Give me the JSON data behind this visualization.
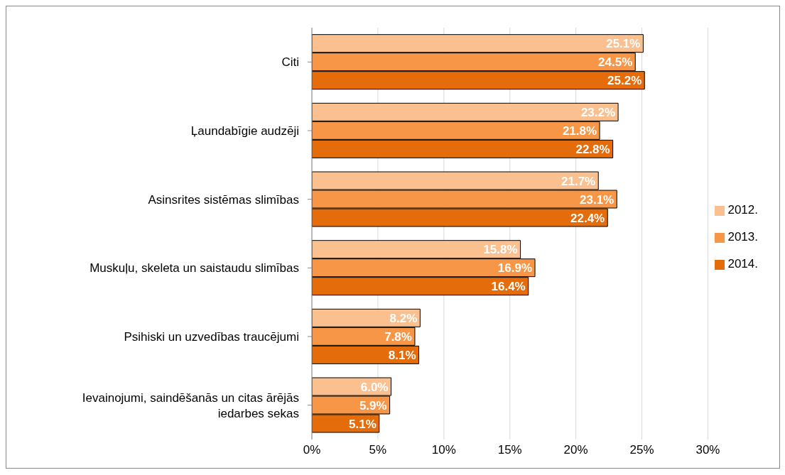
{
  "chart_data": {
    "type": "bar",
    "orientation": "horizontal",
    "categories": [
      "Citi",
      "Ļaundabīgie audzēji",
      "Asinsrites sistēmas slimības",
      "Muskuļu, skeleta un saistaudu slimības",
      "Psihiski un uzvedības traucējumi",
      "Ievainojumi, saindēšanās un citas ārējās iedarbes sekas"
    ],
    "series": [
      {
        "name": "2012.",
        "color": "#fac090",
        "values": [
          25.1,
          23.2,
          21.7,
          15.8,
          8.2,
          6.0
        ],
        "value_labels": [
          "25.1%",
          "23.2%",
          "21.7%",
          "15.8%",
          "8.2%",
          "6.0%"
        ]
      },
      {
        "name": "2013.",
        "color": "#f79646",
        "values": [
          24.5,
          21.8,
          23.1,
          16.9,
          7.8,
          5.9
        ],
        "value_labels": [
          "24.5%",
          "21.8%",
          "23.1%",
          "16.9%",
          "7.8%",
          "5.9%"
        ]
      },
      {
        "name": "2014.",
        "color": "#e46c0a",
        "values": [
          25.2,
          22.8,
          22.4,
          16.4,
          8.1,
          5.1
        ],
        "value_labels": [
          "25.2%",
          "22.8%",
          "22.4%",
          "16.4%",
          "8.1%",
          "5.1%"
        ]
      }
    ],
    "xlim": [
      0,
      30
    ],
    "xticks": [
      {
        "value": 0,
        "label": "0%"
      },
      {
        "value": 5,
        "label": "5%"
      },
      {
        "value": 10,
        "label": "10%"
      },
      {
        "value": 15,
        "label": "15%"
      },
      {
        "value": 20,
        "label": "20%"
      },
      {
        "value": 25,
        "label": "25%"
      },
      {
        "value": 30,
        "label": "30%"
      }
    ],
    "grid": "x",
    "legend": "right"
  }
}
